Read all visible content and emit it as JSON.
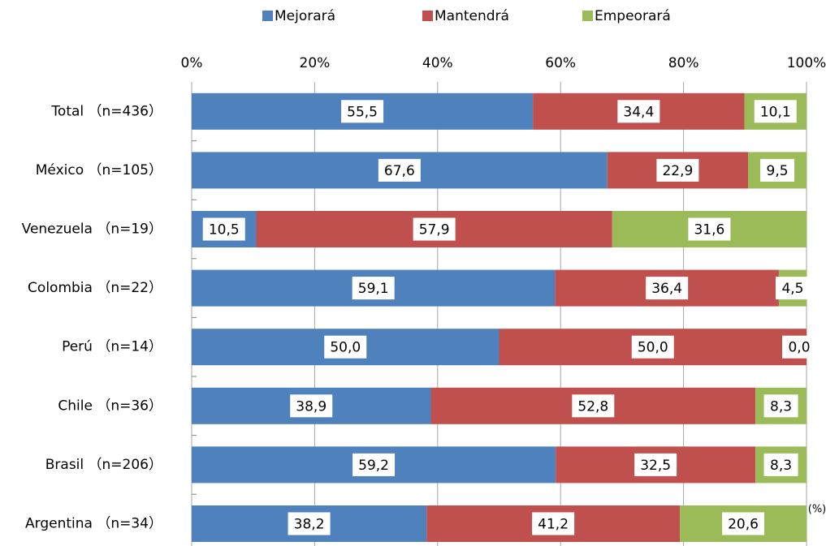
{
  "chart_data": {
    "type": "stacked_barh",
    "categories": [
      "Total （n=436）",
      "México （n=105）",
      "Venezuela （n=19）",
      "Colombia （n=22）",
      "Perú （n=14）",
      "Chile （n=36）",
      "Brasil （n=206）",
      "Argentina （n=34）"
    ],
    "series": [
      {
        "name": "Mejorará",
        "color": "#4f81bd",
        "values": [
          55.5,
          67.6,
          10.5,
          59.1,
          50.0,
          38.9,
          59.2,
          38.2
        ],
        "value_labels": [
          "55,5",
          "67,6",
          "10,5",
          "59,1",
          "50,0",
          "38,9",
          "59,2",
          "38,2"
        ]
      },
      {
        "name": "Mantendrá",
        "color": "#c0504d",
        "values": [
          34.4,
          22.9,
          57.9,
          36.4,
          50.0,
          52.8,
          32.5,
          41.2
        ],
        "value_labels": [
          "34,4",
          "22,9",
          "57,9",
          "36,4",
          "50,0",
          "52,8",
          "32,5",
          "41,2"
        ]
      },
      {
        "name": "Empeorará",
        "color": "#9bbb59",
        "values": [
          10.1,
          9.5,
          31.6,
          4.5,
          0.0,
          8.3,
          8.3,
          20.6
        ],
        "value_labels": [
          "10,1",
          "9,5",
          "31,6",
          "4,5",
          "0,0",
          "8,3",
          "8,3",
          "20,6"
        ]
      }
    ],
    "xlim": [
      0,
      100
    ],
    "xticks": [
      {
        "value": 0,
        "label": "0%"
      },
      {
        "value": 20,
        "label": "20%"
      },
      {
        "value": 40,
        "label": "40%"
      },
      {
        "value": 60,
        "label": "60%"
      },
      {
        "value": 80,
        "label": "80%"
      },
      {
        "value": 100,
        "label": "100%"
      }
    ],
    "unit_label": "(%)",
    "grid": true,
    "legend": "top"
  }
}
